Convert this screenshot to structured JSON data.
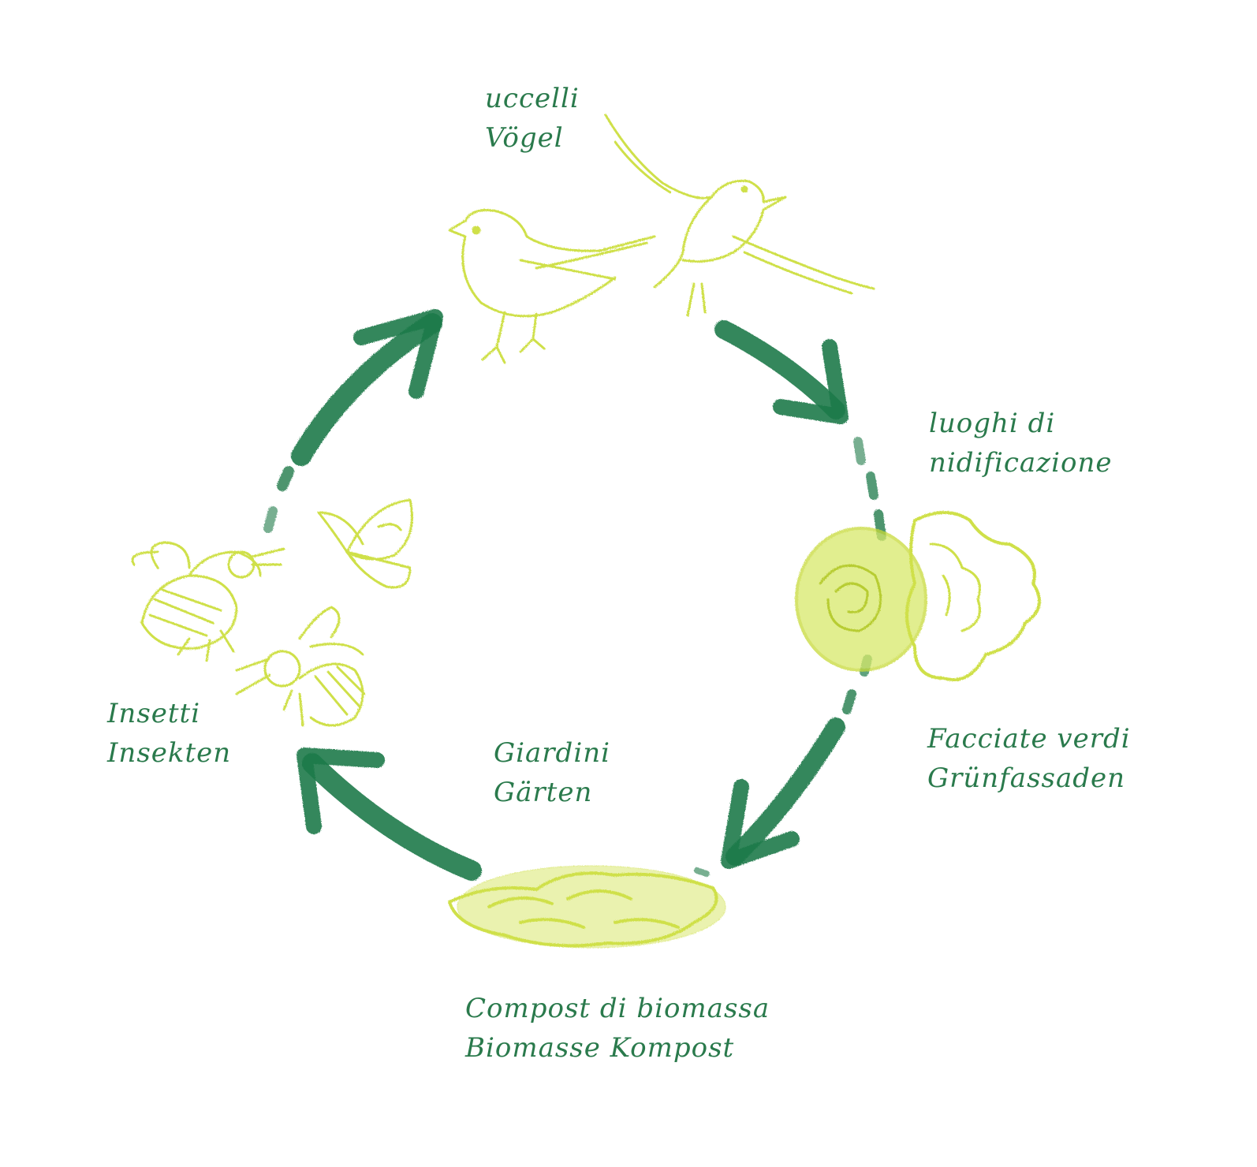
{
  "colors": {
    "arrow": "#1e7a4a",
    "arrow_light": "#4f9a6c",
    "label_text": "#2a7a4c",
    "illustration": "#cfe04a",
    "illustration_light": "#e2ec8c",
    "background": "#ffffff"
  },
  "labels": {
    "birds": {
      "line1": "uccelli",
      "line2": "Vögel"
    },
    "nesting": {
      "line1": "luoghi di",
      "line2": "nidificazione"
    },
    "facades": {
      "line1": "Facciate verdi",
      "line2": "Grünfassaden"
    },
    "gardens": {
      "line1": "Giardini",
      "line2": "Gärten"
    },
    "insects": {
      "line1": "Insetti",
      "line2": "Insekten"
    },
    "compost": {
      "line1": "Compost di biomassa",
      "line2": "Biomasse Kompost"
    }
  },
  "illustrations": [
    {
      "name": "sitting-bird-icon"
    },
    {
      "name": "flying-bird-icon"
    },
    {
      "name": "green-facade-plant-icon"
    },
    {
      "name": "compost-pile-icon"
    },
    {
      "name": "bee-icon"
    },
    {
      "name": "bee-icon"
    },
    {
      "name": "butterfly-icon"
    }
  ]
}
